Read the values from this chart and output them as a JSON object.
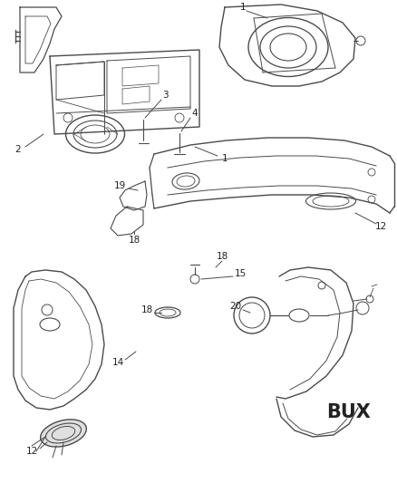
{
  "bg_color": "#ffffff",
  "line_color": "#4a4a4a",
  "text_color": "#222222",
  "bux_text": "BUX",
  "fig_w": 4.38,
  "fig_h": 5.33,
  "dpi": 100
}
